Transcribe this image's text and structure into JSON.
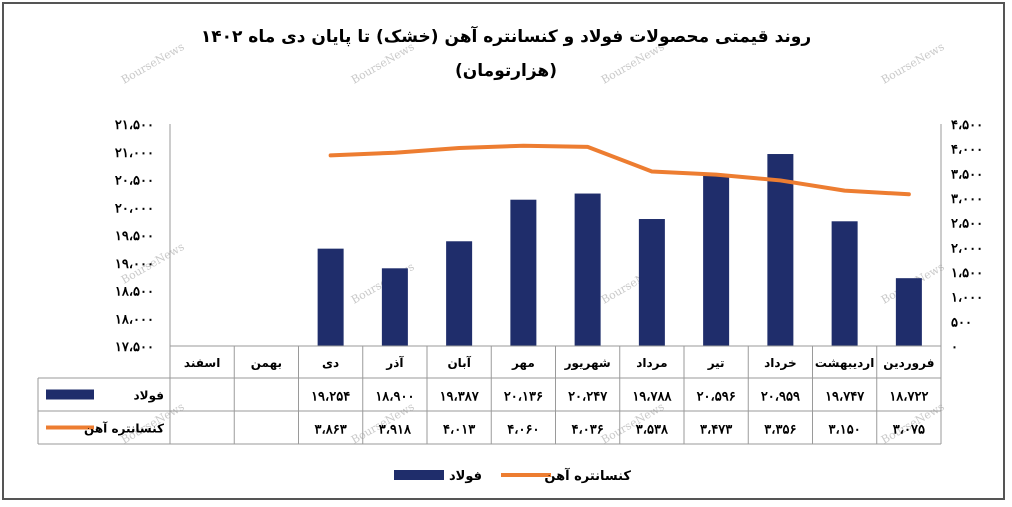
{
  "chart_data": {
    "type": "bar",
    "title": "روند قیمتی محصولات فولاد و کنسانتره آهن (خشک) تا پایان دی ماه ۱۴۰۲",
    "subtitle": "(هزارتومان)",
    "categories": [
      "فروردین",
      "اردیبهشت",
      "خرداد",
      "تیر",
      "مرداد",
      "شهریور",
      "مهر",
      "آبان",
      "آذر",
      "دی",
      "بهمن",
      "اسفند"
    ],
    "series": [
      {
        "name": "فولاد",
        "type": "bar",
        "axis": "left",
        "color": "#1f2d6b",
        "values": [
          18722,
          19747,
          20959,
          20596,
          19788,
          20247,
          20136,
          19387,
          18900,
          19254,
          null,
          null
        ],
        "labels": [
          "۱۸،۷۲۲",
          "۱۹،۷۴۷",
          "۲۰،۹۵۹",
          "۲۰،۵۹۶",
          "۱۹،۷۸۸",
          "۲۰،۲۴۷",
          "۲۰،۱۳۶",
          "۱۹،۳۸۷",
          "۱۸،۹۰۰",
          "۱۹،۲۵۴",
          "",
          ""
        ]
      },
      {
        "name": "کنسانتره آهن",
        "type": "line",
        "axis": "right",
        "color": "#ed7d31",
        "values": [
          3075,
          3150,
          3356,
          3473,
          3538,
          4036,
          4060,
          4013,
          3918,
          3863,
          null,
          null
        ],
        "labels": [
          "۳،۰۷۵",
          "۳،۱۵۰",
          "۳،۳۵۶",
          "۳،۴۷۳",
          "۳،۵۳۸",
          "۴،۰۳۶",
          "۴،۰۶۰",
          "۴،۰۱۳",
          "۳،۹۱۸",
          "۳،۸۶۳",
          "",
          ""
        ]
      }
    ],
    "y_left": {
      "ylim": [
        17500,
        21500
      ],
      "ticks": [
        21500,
        21000,
        20500,
        20000,
        19500,
        19000,
        18500,
        18000,
        17500
      ],
      "tick_labels": [
        "۲۱،۵۰۰",
        "۲۱،۰۰۰",
        "۲۰،۵۰۰",
        "۲۰،۰۰۰",
        "۱۹،۵۰۰",
        "۱۹،۰۰۰",
        "۱۸،۵۰۰",
        "۱۸،۰۰۰",
        "۱۷،۵۰۰"
      ]
    },
    "y_right": {
      "ylim": [
        0,
        4500
      ],
      "ticks": [
        4500,
        4000,
        3500,
        3000,
        2500,
        2000,
        1500,
        1000,
        500,
        0
      ],
      "tick_labels": [
        "۴،۵۰۰",
        "۴،۰۰۰",
        "۳،۵۰۰",
        "۳،۰۰۰",
        "۲،۵۰۰",
        "۲،۰۰۰",
        "۱،۵۰۰",
        "۱،۰۰۰",
        "۵۰۰",
        "۰"
      ]
    },
    "data_table": true,
    "grid": false,
    "legend": "bottom",
    "watermark": "BourseNews"
  }
}
